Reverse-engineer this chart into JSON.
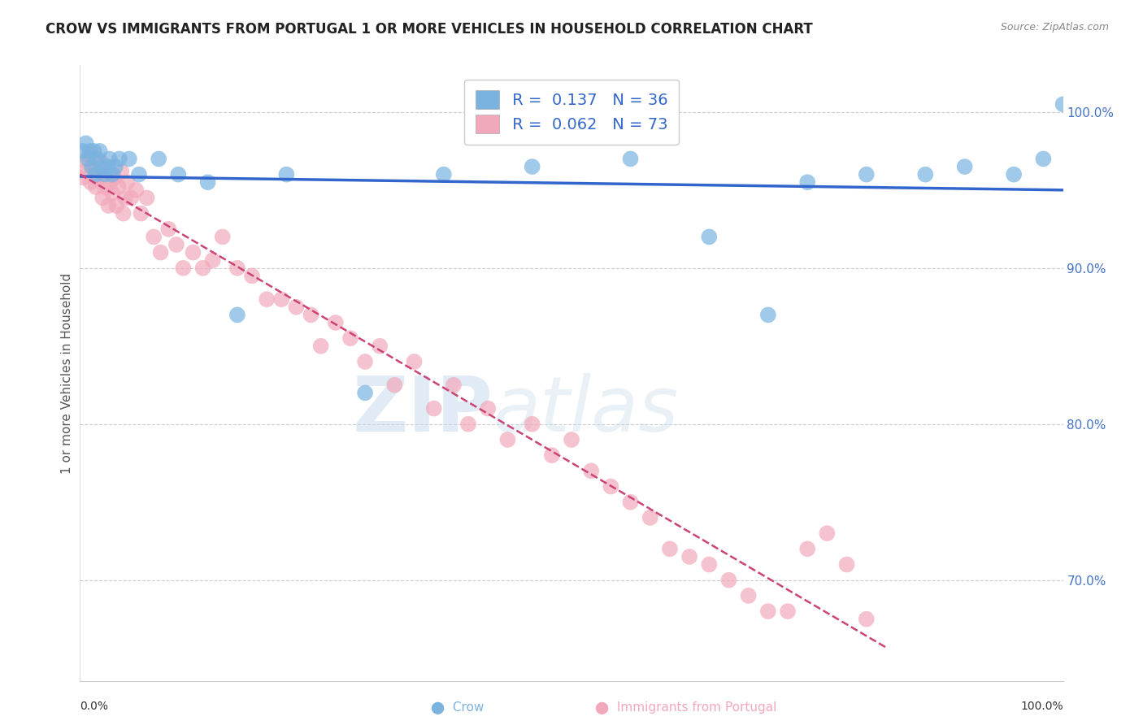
{
  "title": "CROW VS IMMIGRANTS FROM PORTUGAL 1 OR MORE VEHICLES IN HOUSEHOLD CORRELATION CHART",
  "source": "Source: ZipAtlas.com",
  "ylabel": "1 or more Vehicles in Household",
  "xlim": [
    0.0,
    1.0
  ],
  "ylim": [
    0.635,
    1.03
  ],
  "yticks": [
    0.7,
    0.8,
    0.9,
    1.0
  ],
  "ytick_labels": [
    "70.0%",
    "80.0%",
    "90.0%",
    "100.0%"
  ],
  "legend_crow_R": "0.137",
  "legend_crow_N": "36",
  "legend_port_R": "0.062",
  "legend_port_N": "73",
  "crow_color": "#7ab3e0",
  "port_color": "#f2a8bb",
  "crow_line_color": "#3366cc",
  "port_line_color": "#cc4477",
  "background_color": "#ffffff",
  "crow_x": [
    0.003,
    0.006,
    0.008,
    0.01,
    0.012,
    0.014,
    0.016,
    0.018,
    0.02,
    0.022,
    0.025,
    0.028,
    0.03,
    0.033,
    0.036,
    0.04,
    0.05,
    0.06,
    0.08,
    0.1,
    0.13,
    0.16,
    0.21,
    0.29,
    0.37,
    0.46,
    0.56,
    0.64,
    0.7,
    0.74,
    0.8,
    0.86,
    0.9,
    0.95,
    0.98,
    1.0
  ],
  "crow_y": [
    0.975,
    0.98,
    0.97,
    0.975,
    0.965,
    0.975,
    0.96,
    0.97,
    0.975,
    0.965,
    0.96,
    0.965,
    0.97,
    0.96,
    0.965,
    0.97,
    0.97,
    0.96,
    0.97,
    0.96,
    0.955,
    0.87,
    0.96,
    0.82,
    0.96,
    0.965,
    0.97,
    0.92,
    0.87,
    0.955,
    0.96,
    0.96,
    0.965,
    0.96,
    0.97,
    1.005
  ],
  "port_x": [
    0.003,
    0.005,
    0.007,
    0.009,
    0.011,
    0.013,
    0.015,
    0.016,
    0.018,
    0.019,
    0.021,
    0.023,
    0.025,
    0.027,
    0.029,
    0.031,
    0.033,
    0.035,
    0.037,
    0.039,
    0.042,
    0.044,
    0.046,
    0.048,
    0.052,
    0.057,
    0.062,
    0.068,
    0.075,
    0.082,
    0.09,
    0.098,
    0.105,
    0.115,
    0.125,
    0.135,
    0.145,
    0.16,
    0.175,
    0.19,
    0.205,
    0.22,
    0.235,
    0.245,
    0.26,
    0.275,
    0.29,
    0.305,
    0.32,
    0.34,
    0.36,
    0.38,
    0.395,
    0.415,
    0.435,
    0.46,
    0.48,
    0.5,
    0.52,
    0.54,
    0.56,
    0.58,
    0.6,
    0.62,
    0.64,
    0.66,
    0.68,
    0.7,
    0.72,
    0.74,
    0.76,
    0.78,
    0.8
  ],
  "port_y": [
    0.958,
    0.962,
    0.968,
    0.972,
    0.955,
    0.965,
    0.97,
    0.952,
    0.958,
    0.962,
    0.968,
    0.945,
    0.952,
    0.965,
    0.94,
    0.955,
    0.948,
    0.958,
    0.94,
    0.952,
    0.962,
    0.935,
    0.945,
    0.955,
    0.945,
    0.95,
    0.935,
    0.945,
    0.92,
    0.91,
    0.925,
    0.915,
    0.9,
    0.91,
    0.9,
    0.905,
    0.92,
    0.9,
    0.895,
    0.88,
    0.88,
    0.875,
    0.87,
    0.85,
    0.865,
    0.855,
    0.84,
    0.85,
    0.825,
    0.84,
    0.81,
    0.825,
    0.8,
    0.81,
    0.79,
    0.8,
    0.78,
    0.79,
    0.77,
    0.76,
    0.75,
    0.74,
    0.72,
    0.715,
    0.71,
    0.7,
    0.69,
    0.68,
    0.68,
    0.72,
    0.73,
    0.71,
    0.675
  ]
}
